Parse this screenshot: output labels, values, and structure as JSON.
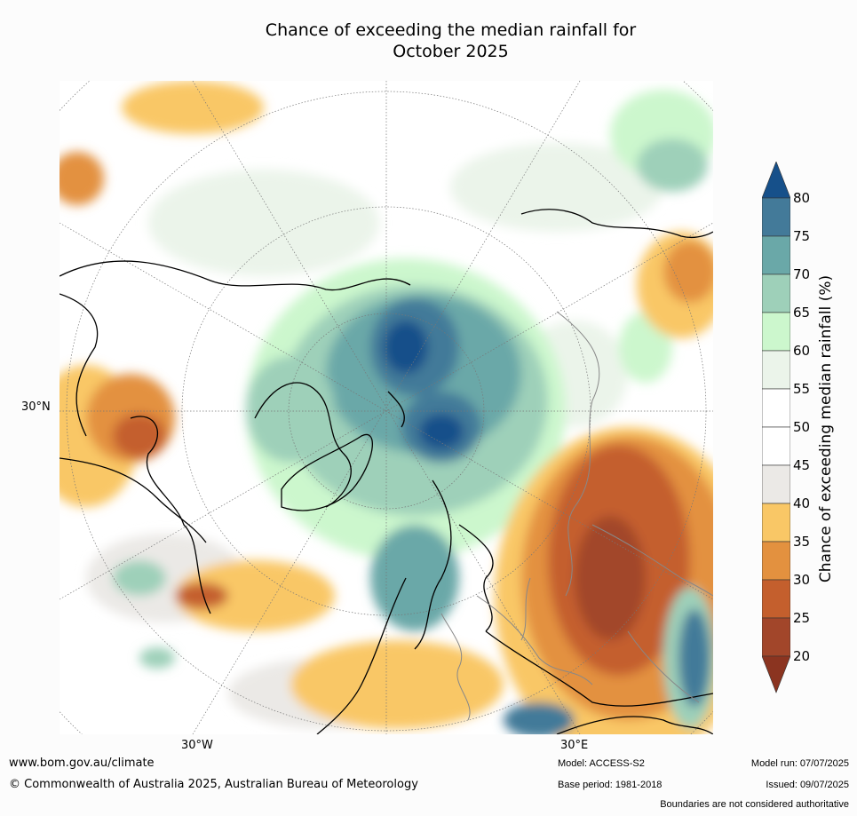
{
  "title_line1": "Chance of exceeding the median rainfall for",
  "title_line2": "October 2025",
  "axis_labels": {
    "lat_30n": "30°N",
    "lon_30w": "30°W",
    "lon_30e": "30°E"
  },
  "colorbar": {
    "label": "Chance of exceeding median rainfall (%)",
    "ticks": [
      "80",
      "75",
      "70",
      "65",
      "60",
      "55",
      "50",
      "45",
      "40",
      "35",
      "30",
      "25",
      "20"
    ],
    "colors": {
      "above_80": "#16508a",
      "75_80": "#437a99",
      "70_75": "#6aa8a8",
      "65_70": "#9ed0b9",
      "60_65": "#ccf7cd",
      "55_60": "#ebf4ea",
      "50_55": "#ffffff",
      "45_50": "#ffffff",
      "40_45": "#ebe9e6",
      "35_40": "#f9c766",
      "30_35": "#e3913f",
      "25_30": "#c45f2d",
      "20_25": "#a2462a",
      "below_20": "#8b3420"
    }
  },
  "footer": {
    "url": "www.bom.gov.au/climate",
    "copyright": "© Commonwealth of Australia 2025, Australian Bureau of Meteorology",
    "model": "Model: ACCESS-S2",
    "base_period": "Base period: 1981-2018",
    "model_run": "Model run: 07/07/2025",
    "issued": "Issued: 09/07/2025",
    "disclaimer": "Boundaries are not considered authoritative"
  }
}
